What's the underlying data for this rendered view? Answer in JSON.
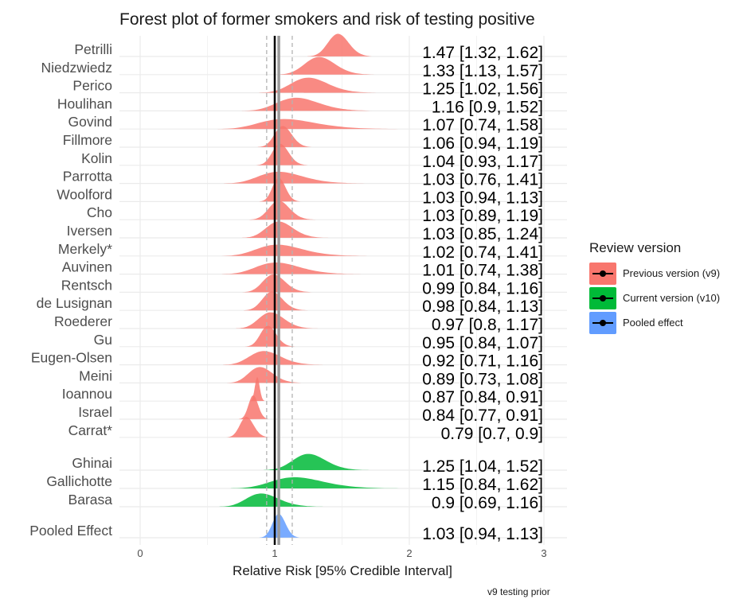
{
  "title": "Forest plot of former smokers and risk of testing positive",
  "caption": "v9 testing prior",
  "colors": {
    "previous": "#F8766D",
    "current": "#00BA38",
    "pooled": "#619CFF"
  },
  "legend": {
    "title": "Review version",
    "items": [
      {
        "label": "Previous version (v9)",
        "color_key": "previous"
      },
      {
        "label": "Current version (v10)",
        "color_key": "current"
      },
      {
        "label": "Pooled effect",
        "color_key": "pooled"
      }
    ]
  },
  "chart_data": {
    "type": "ridgeline-forest",
    "title": "Forest plot of former smokers and risk of testing positive",
    "xlabel": "Relative Risk [95% Credible Interval]",
    "xlim": [
      -0.1,
      3.1
    ],
    "xticks": [
      0,
      1,
      2,
      3
    ],
    "grid": true,
    "legend_position": "right",
    "pooled_estimate": {
      "rr": 1.03,
      "lower": 0.94,
      "upper": 1.13
    },
    "studies": [
      {
        "name": "Petrilli",
        "group": "previous",
        "rr": 1.47,
        "lower": 1.32,
        "upper": 1.62,
        "label": "1.47 [1.32, 1.62]"
      },
      {
        "name": "Niedzwiedz",
        "group": "previous",
        "rr": 1.33,
        "lower": 1.13,
        "upper": 1.57,
        "label": "1.33 [1.13, 1.57]"
      },
      {
        "name": "Perico",
        "group": "previous",
        "rr": 1.25,
        "lower": 1.02,
        "upper": 1.56,
        "label": "1.25 [1.02, 1.56]"
      },
      {
        "name": "Houlihan",
        "group": "previous",
        "rr": 1.16,
        "lower": 0.9,
        "upper": 1.52,
        "label": "1.16 [0.9, 1.52]"
      },
      {
        "name": "Govind",
        "group": "previous",
        "rr": 1.07,
        "lower": 0.74,
        "upper": 1.58,
        "label": "1.07 [0.74, 1.58]"
      },
      {
        "name": "Fillmore",
        "group": "previous",
        "rr": 1.06,
        "lower": 0.94,
        "upper": 1.19,
        "label": "1.06 [0.94, 1.19]"
      },
      {
        "name": "Kolin",
        "group": "previous",
        "rr": 1.04,
        "lower": 0.93,
        "upper": 1.17,
        "label": "1.04 [0.93, 1.17]"
      },
      {
        "name": "Parrotta",
        "group": "previous",
        "rr": 1.03,
        "lower": 0.76,
        "upper": 1.41,
        "label": "1.03 [0.76, 1.41]"
      },
      {
        "name": "Woolford",
        "group": "previous",
        "rr": 1.03,
        "lower": 0.94,
        "upper": 1.13,
        "label": "1.03 [0.94, 1.13]"
      },
      {
        "name": "Cho",
        "group": "previous",
        "rr": 1.03,
        "lower": 0.89,
        "upper": 1.19,
        "label": "1.03 [0.89, 1.19]"
      },
      {
        "name": "Iversen",
        "group": "previous",
        "rr": 1.03,
        "lower": 0.85,
        "upper": 1.24,
        "label": "1.03 [0.85, 1.24]"
      },
      {
        "name": "Merkely*",
        "group": "previous",
        "rr": 1.02,
        "lower": 0.74,
        "upper": 1.41,
        "label": "1.02 [0.74, 1.41]"
      },
      {
        "name": "Auvinen",
        "group": "previous",
        "rr": 1.01,
        "lower": 0.74,
        "upper": 1.38,
        "label": "1.01 [0.74, 1.38]"
      },
      {
        "name": "Rentsch",
        "group": "previous",
        "rr": 0.99,
        "lower": 0.84,
        "upper": 1.16,
        "label": "0.99 [0.84, 1.16]"
      },
      {
        "name": "de Lusignan",
        "group": "previous",
        "rr": 0.98,
        "lower": 0.84,
        "upper": 1.13,
        "label": "0.98 [0.84, 1.13]"
      },
      {
        "name": "Roederer",
        "group": "previous",
        "rr": 0.97,
        "lower": 0.8,
        "upper": 1.17,
        "label": "0.97 [0.8, 1.17]"
      },
      {
        "name": "Gu",
        "group": "previous",
        "rr": 0.95,
        "lower": 0.84,
        "upper": 1.07,
        "label": "0.95 [0.84, 1.07]"
      },
      {
        "name": "Eugen-Olsen",
        "group": "previous",
        "rr": 0.92,
        "lower": 0.71,
        "upper": 1.16,
        "label": "0.92 [0.71, 1.16]"
      },
      {
        "name": "Meini",
        "group": "previous",
        "rr": 0.89,
        "lower": 0.73,
        "upper": 1.08,
        "label": "0.89 [0.73, 1.08]"
      },
      {
        "name": "Ioannou",
        "group": "previous",
        "rr": 0.87,
        "lower": 0.84,
        "upper": 0.91,
        "label": "0.87 [0.84, 0.91]"
      },
      {
        "name": "Israel",
        "group": "previous",
        "rr": 0.84,
        "lower": 0.77,
        "upper": 0.91,
        "label": "0.84 [0.77, 0.91]"
      },
      {
        "name": "Carrat*",
        "group": "previous",
        "rr": 0.79,
        "lower": 0.7,
        "upper": 0.9,
        "label": "0.79 [0.7, 0.9]"
      },
      {
        "name": "Ghinai",
        "group": "current",
        "rr": 1.25,
        "lower": 1.04,
        "upper": 1.52,
        "label": "1.25 [1.04, 1.52]"
      },
      {
        "name": "Gallichotte",
        "group": "current",
        "rr": 1.15,
        "lower": 0.84,
        "upper": 1.62,
        "label": "1.15 [0.84, 1.62]"
      },
      {
        "name": "Barasa",
        "group": "current",
        "rr": 0.9,
        "lower": 0.69,
        "upper": 1.16,
        "label": "0.9 [0.69, 1.16]"
      },
      {
        "name": "Pooled Effect",
        "group": "pooled",
        "rr": 1.03,
        "lower": 0.94,
        "upper": 1.13,
        "label": "1.03 [0.94, 1.13]"
      }
    ]
  }
}
